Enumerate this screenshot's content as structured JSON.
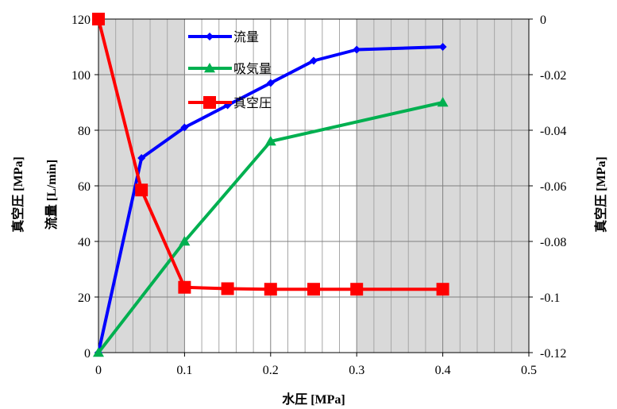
{
  "chart_data": {
    "type": "line",
    "title": "",
    "xlabel": "水圧 [MPa]",
    "ylabel_left_outer": "真空圧 [MPa]",
    "ylabel_left": "流量 [L/min]",
    "ylabel_right": "真空圧 [MPa]",
    "xlim": [
      0,
      0.5
    ],
    "ylim_left": [
      0,
      120
    ],
    "ylim_right": [
      -0.12,
      0
    ],
    "x_ticks": [
      "0",
      "0.1",
      "0.2",
      "0.3",
      "0.4",
      "0.5"
    ],
    "y_left_ticks": [
      "0",
      "20",
      "40",
      "60",
      "80",
      "100",
      "120"
    ],
    "y_right_ticks": [
      "-0.12",
      "-0.1",
      "-0.08",
      "-0.06",
      "-0.04",
      "-0.02",
      "0"
    ],
    "grid": true,
    "legend_position": "top-center",
    "series": [
      {
        "name": "流量",
        "axis": "left",
        "color": "#0000ff",
        "marker": "diamond",
        "x": [
          0,
          0.05,
          0.1,
          0.15,
          0.2,
          0.25,
          0.3,
          0.4
        ],
        "y": [
          0,
          70,
          81,
          89,
          97,
          105,
          109,
          110
        ]
      },
      {
        "name": "吸気量",
        "axis": "left",
        "color": "#00b050",
        "marker": "triangle",
        "x": [
          0,
          0.1,
          0.2,
          0.4
        ],
        "y": [
          0,
          40,
          76,
          90
        ]
      },
      {
        "name": "真空圧",
        "axis": "right",
        "color": "#ff0000",
        "marker": "square",
        "x": [
          0,
          0.05,
          0.1,
          0.15,
          0.2,
          0.25,
          0.3,
          0.4
        ],
        "y": [
          0,
          -0.0615,
          -0.0965,
          -0.097,
          -0.0972,
          -0.0972,
          -0.0972,
          -0.0972
        ]
      }
    ]
  }
}
